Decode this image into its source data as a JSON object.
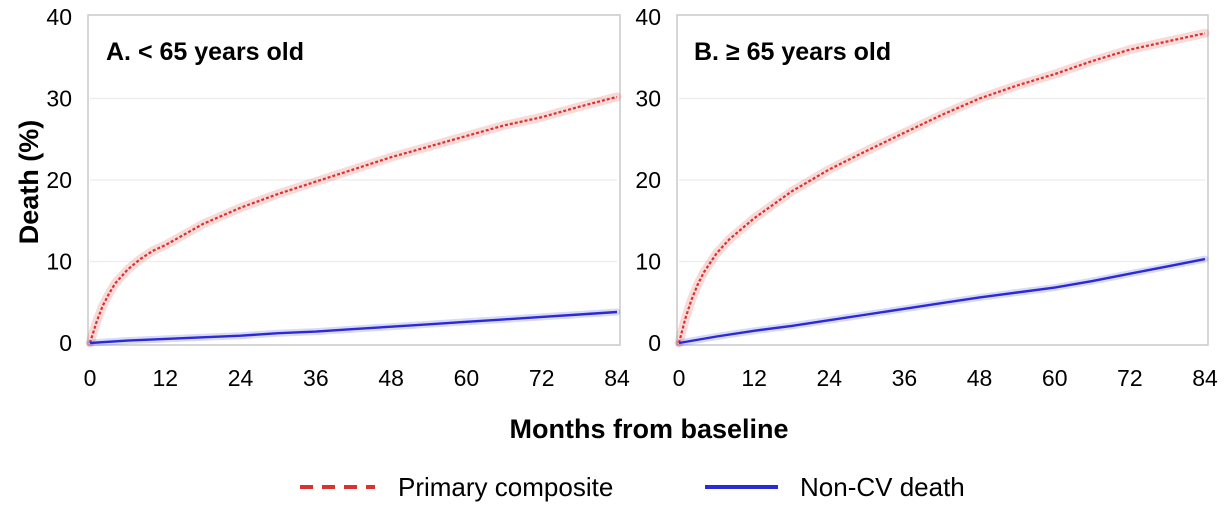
{
  "figure": {
    "ylabel": "Death (%)",
    "xlabel": "Months from baseline",
    "legend": [
      {
        "label": "Primary composite",
        "color": "#d9322f",
        "style": "dashed"
      },
      {
        "label": "Non-CV death",
        "color": "#2a2ad6",
        "style": "solid"
      }
    ]
  },
  "chart_data": [
    {
      "type": "line",
      "title": "A. < 65 years old",
      "x_ticks": [
        0,
        12,
        24,
        36,
        48,
        60,
        72,
        84
      ],
      "y_ticks": [
        0,
        10,
        20,
        30,
        40
      ],
      "xlim": [
        0,
        84
      ],
      "ylim": [
        0,
        40
      ],
      "grid": "horizontal",
      "series": [
        {
          "name": "Primary composite",
          "color": "#d9322f",
          "style": "dashed",
          "x": [
            0,
            1,
            2,
            3,
            4,
            6,
            8,
            10,
            12,
            18,
            24,
            30,
            36,
            42,
            48,
            54,
            60,
            66,
            72,
            78,
            84
          ],
          "y": [
            0,
            2.5,
            4.5,
            6.0,
            7.3,
            9.0,
            10.3,
            11.3,
            12.0,
            14.6,
            16.6,
            18.3,
            19.8,
            21.3,
            22.8,
            24.1,
            25.4,
            26.7,
            27.7,
            29.0,
            30.2
          ]
        },
        {
          "name": "Non-CV death",
          "color": "#2a2ad6",
          "style": "solid",
          "x": [
            0,
            6,
            12,
            18,
            24,
            30,
            36,
            42,
            48,
            54,
            60,
            66,
            72,
            78,
            84
          ],
          "y": [
            0,
            0.3,
            0.5,
            0.7,
            0.9,
            1.2,
            1.4,
            1.7,
            2.0,
            2.3,
            2.6,
            2.9,
            3.2,
            3.5,
            3.8
          ]
        }
      ]
    },
    {
      "type": "line",
      "title": "B. ≥ 65 years old",
      "x_ticks": [
        0,
        12,
        24,
        36,
        48,
        60,
        72,
        84
      ],
      "y_ticks": [
        0,
        10,
        20,
        30,
        40
      ],
      "xlim": [
        0,
        84
      ],
      "ylim": [
        0,
        40
      ],
      "grid": "horizontal",
      "series": [
        {
          "name": "Primary composite",
          "color": "#d9322f",
          "style": "dashed",
          "x": [
            0,
            1,
            2,
            3,
            4,
            6,
            8,
            10,
            12,
            18,
            24,
            30,
            36,
            42,
            48,
            54,
            60,
            66,
            72,
            78,
            84
          ],
          "y": [
            0,
            3.0,
            5.3,
            7.2,
            8.7,
            11.0,
            12.7,
            14.0,
            15.3,
            18.6,
            21.3,
            23.6,
            25.8,
            28.0,
            30.0,
            31.6,
            33.0,
            34.6,
            36.0,
            37.0,
            38.0
          ]
        },
        {
          "name": "Non-CV death",
          "color": "#2a2ad6",
          "style": "solid",
          "x": [
            0,
            6,
            12,
            18,
            24,
            30,
            36,
            42,
            48,
            54,
            60,
            66,
            72,
            78,
            84
          ],
          "y": [
            0,
            0.8,
            1.5,
            2.1,
            2.8,
            3.5,
            4.2,
            4.9,
            5.6,
            6.2,
            6.8,
            7.6,
            8.5,
            9.4,
            10.3
          ]
        }
      ]
    }
  ]
}
